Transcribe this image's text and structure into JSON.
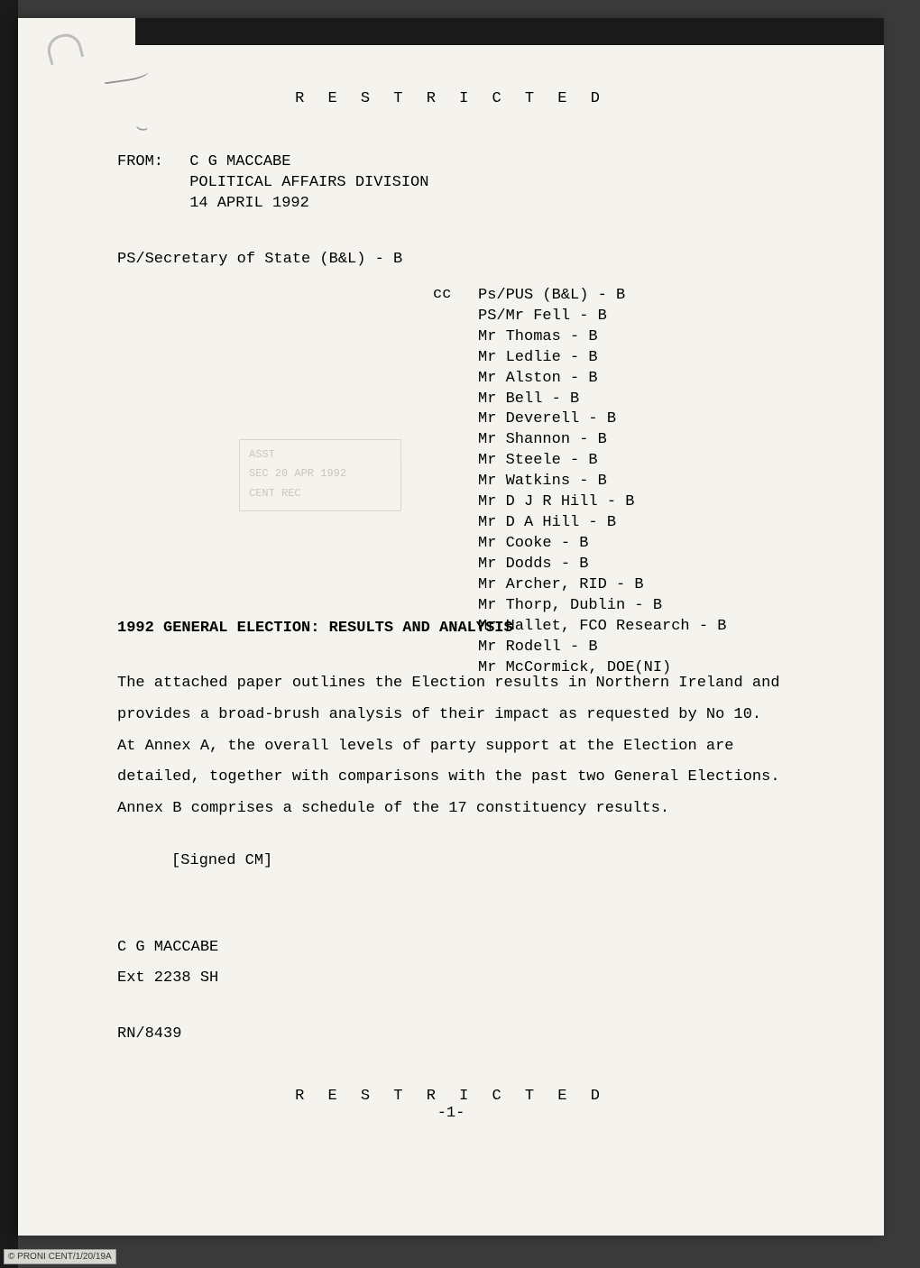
{
  "classification": "R E S T R I C T E D",
  "from": {
    "label": "FROM:",
    "name": "C G MACCABE",
    "division": "POLITICAL AFFAIRS DIVISION",
    "date": "14 APRIL 1992"
  },
  "addressee": "PS/Secretary of State (B&L) - B",
  "cc_label": "cc",
  "cc_list": [
    "Ps/PUS (B&L) - B",
    "PS/Mr Fell - B",
    "Mr Thomas - B",
    "Mr Ledlie - B",
    "Mr Alston - B",
    "Mr Bell - B",
    "Mr Deverell - B",
    "Mr Shannon - B",
    "Mr Steele - B",
    "Mr Watkins - B",
    "Mr D J R Hill - B",
    "Mr D A Hill - B",
    "Mr Cooke - B",
    "Mr Dodds - B",
    "Mr Archer, RID - B",
    "Mr Thorp, Dublin - B",
    "Mr Hallet, FCO Research - B",
    "Mr Rodell - B",
    "Mr McCormick, DOE(NI)"
  ],
  "stamp": {
    "line1": "ASST",
    "line2": "SEC 20 APR 1992",
    "line3": "CENT          REC"
  },
  "subject": "1992 GENERAL ELECTION:  RESULTS AND ANALYSIS",
  "body": "The attached paper outlines the Election results in Northern Ireland and provides a broad-brush analysis of their impact as requested by No 10.  At Annex A, the overall levels of party support at the Election are detailed, together with comparisons with the past two General Elections.  Annex B comprises a schedule of the 17 constituency results.",
  "signed_note": "[Signed CM]",
  "signature": {
    "name": "C G MACCABE",
    "ext": "Ext 2238 SH"
  },
  "reference": "RN/8439",
  "page_number": "-1-",
  "archive_ref": "© PRONI CENT/1/20/19A",
  "colors": {
    "paper": "#f5f3ee",
    "text": "#2a2a28",
    "background": "#3a3a3a",
    "border_dark": "#1a1a1a"
  },
  "typography": {
    "font_family": "Courier New",
    "body_fontsize": 17,
    "letter_spacing_classification": 8
  }
}
